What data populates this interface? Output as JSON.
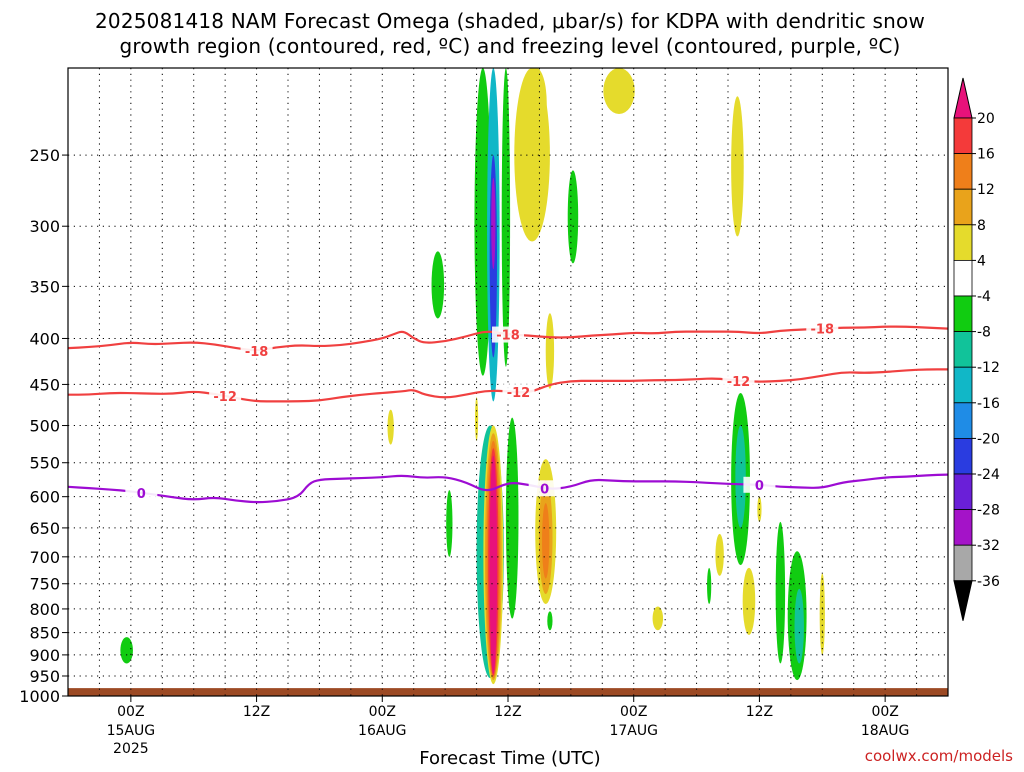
{
  "chart_data": {
    "type": "heatmap",
    "title_line1": "2025081418 NAM Forecast Omega (shaded, μbar/s) for KDPA with dendritic snow",
    "title_line2": "growth region (contoured, red, ºC) and freezing level (contoured, purple, ºC)",
    "xlabel": "Forecast Time (UTC)",
    "credit": "coolwx.com/models",
    "y_axis": {
      "scale": "pressure",
      "range": [
        1000,
        200
      ],
      "ticks": [
        "250",
        "300",
        "350",
        "400",
        "450",
        "500",
        "550",
        "600",
        "650",
        "700",
        "750",
        "800",
        "850",
        "900",
        "950",
        "1000"
      ]
    },
    "x_axis": {
      "range_hours": [
        -6,
        78
      ],
      "ticks": [
        {
          "h": 0,
          "line1": "00Z",
          "line2": "15AUG",
          "line3": "2025"
        },
        {
          "h": 12,
          "line1": "12Z",
          "line2": "",
          "line3": ""
        },
        {
          "h": 24,
          "line1": "00Z",
          "line2": "16AUG",
          "line3": ""
        },
        {
          "h": 36,
          "line1": "12Z",
          "line2": "",
          "line3": ""
        },
        {
          "h": 48,
          "line1": "00Z",
          "line2": "17AUG",
          "line3": ""
        },
        {
          "h": 60,
          "line1": "12Z",
          "line2": "",
          "line3": ""
        },
        {
          "h": 72,
          "line1": "00Z",
          "line2": "18AUG",
          "line3": ""
        }
      ]
    },
    "grid": true,
    "colorbar": {
      "labels": [
        "20",
        "16",
        "12",
        "8",
        "4",
        "-4",
        "-8",
        "-12",
        "-16",
        "-20",
        "-24",
        "-28",
        "-32",
        "-36"
      ],
      "bands": [
        {
          "from": 16,
          "to": 20,
          "color": "#f43a3a"
        },
        {
          "from": 12,
          "to": 16,
          "color": "#ef7f1a"
        },
        {
          "from": 8,
          "to": 12,
          "color": "#e9a31b"
        },
        {
          "from": 4,
          "to": 8,
          "color": "#e5db2c"
        },
        {
          "from": -4,
          "to": 4,
          "color": "#ffffff"
        },
        {
          "from": -8,
          "to": -4,
          "color": "#11cc11"
        },
        {
          "from": -12,
          "to": -8,
          "color": "#11c39a"
        },
        {
          "from": -16,
          "to": -12,
          "color": "#11b7c7"
        },
        {
          "from": -20,
          "to": -16,
          "color": "#1f8ce6"
        },
        {
          "from": -24,
          "to": -20,
          "color": "#2a3ce0"
        },
        {
          "from": -28,
          "to": -24,
          "color": "#6a1fd8"
        },
        {
          "from": -32,
          "to": -28,
          "color": "#a413c8"
        },
        {
          "from": -36,
          "to": -32,
          "color": "#a8a8a8"
        }
      ],
      "top_arrow_color": "#e8127a",
      "bottom_arrow_color": "#000000"
    },
    "ground_color": "#9c4a24",
    "contours": [
      {
        "label": "-18",
        "color": "#f04040",
        "points": [
          [
            -6,
            410
          ],
          [
            -4,
            409
          ],
          [
            -2,
            407
          ],
          [
            0,
            404
          ],
          [
            2,
            406
          ],
          [
            4,
            405
          ],
          [
            6,
            404
          ],
          [
            8,
            406
          ],
          [
            10,
            410
          ],
          [
            12,
            413
          ],
          [
            14,
            409
          ],
          [
            16,
            407
          ],
          [
            18,
            408
          ],
          [
            20,
            407
          ],
          [
            22,
            404
          ],
          [
            24,
            400
          ],
          [
            25,
            396
          ],
          [
            26,
            392
          ],
          [
            27,
            400
          ],
          [
            28,
            405
          ],
          [
            30,
            403
          ],
          [
            32,
            398
          ],
          [
            34,
            392
          ],
          [
            36,
            396
          ],
          [
            38,
            397
          ],
          [
            40,
            399
          ],
          [
            42,
            399
          ],
          [
            44,
            397
          ],
          [
            46,
            396
          ],
          [
            48,
            394
          ],
          [
            50,
            395
          ],
          [
            52,
            393
          ],
          [
            54,
            393
          ],
          [
            56,
            393
          ],
          [
            58,
            393
          ],
          [
            60,
            395
          ],
          [
            62,
            392
          ],
          [
            64,
            391
          ],
          [
            66,
            390
          ],
          [
            68,
            389
          ],
          [
            70,
            389
          ],
          [
            72,
            388
          ],
          [
            74,
            388
          ],
          [
            76,
            389
          ],
          [
            78,
            390
          ]
        ],
        "labels_at": [
          12,
          36,
          66
        ]
      },
      {
        "label": "-12",
        "color": "#f04040",
        "points": [
          [
            -6,
            462
          ],
          [
            -4,
            462
          ],
          [
            -2,
            460
          ],
          [
            0,
            460
          ],
          [
            2,
            461
          ],
          [
            4,
            461
          ],
          [
            6,
            458
          ],
          [
            8,
            461
          ],
          [
            10,
            466
          ],
          [
            12,
            470
          ],
          [
            14,
            470
          ],
          [
            16,
            470
          ],
          [
            18,
            469
          ],
          [
            20,
            465
          ],
          [
            22,
            462
          ],
          [
            24,
            460
          ],
          [
            26,
            458
          ],
          [
            27,
            456
          ],
          [
            28,
            462
          ],
          [
            30,
            466
          ],
          [
            32,
            462
          ],
          [
            34,
            457
          ],
          [
            36,
            458
          ],
          [
            38,
            460
          ],
          [
            40,
            450
          ],
          [
            42,
            446
          ],
          [
            44,
            446
          ],
          [
            46,
            446
          ],
          [
            48,
            446
          ],
          [
            50,
            445
          ],
          [
            52,
            445
          ],
          [
            54,
            444
          ],
          [
            56,
            443
          ],
          [
            58,
            446
          ],
          [
            60,
            447
          ],
          [
            62,
            446
          ],
          [
            64,
            444
          ],
          [
            66,
            440
          ],
          [
            68,
            436
          ],
          [
            70,
            437
          ],
          [
            72,
            436
          ],
          [
            74,
            434
          ],
          [
            76,
            433
          ],
          [
            78,
            433
          ]
        ],
        "labels_at": [
          9,
          37,
          58
        ]
      },
      {
        "label": "0",
        "color": "#9d0cd3",
        "points": [
          [
            -6,
            585
          ],
          [
            -4,
            587
          ],
          [
            -2,
            589
          ],
          [
            0,
            592
          ],
          [
            2,
            596
          ],
          [
            4,
            601
          ],
          [
            6,
            605
          ],
          [
            8,
            601
          ],
          [
            10,
            606
          ],
          [
            12,
            609
          ],
          [
            14,
            607
          ],
          [
            16,
            601
          ],
          [
            17,
            580
          ],
          [
            18,
            574
          ],
          [
            20,
            573
          ],
          [
            22,
            572
          ],
          [
            24,
            571
          ],
          [
            26,
            568
          ],
          [
            28,
            572
          ],
          [
            30,
            570
          ],
          [
            32,
            578
          ],
          [
            34,
            594
          ],
          [
            36,
            578
          ],
          [
            38,
            582
          ],
          [
            40,
            589
          ],
          [
            42,
            585
          ],
          [
            44,
            574
          ],
          [
            46,
            576
          ],
          [
            48,
            577
          ],
          [
            50,
            577
          ],
          [
            52,
            577
          ],
          [
            54,
            578
          ],
          [
            56,
            580
          ],
          [
            58,
            581
          ],
          [
            60,
            582
          ],
          [
            62,
            585
          ],
          [
            64,
            586
          ],
          [
            66,
            587
          ],
          [
            68,
            578
          ],
          [
            70,
            575
          ],
          [
            72,
            571
          ],
          [
            74,
            570
          ],
          [
            76,
            568
          ],
          [
            78,
            567
          ]
        ],
        "labels_at": [
          1,
          39.5,
          60
        ]
      }
    ],
    "omega_cells": [
      {
        "t": 33.6,
        "p_top": 200,
        "p_bot": 440,
        "half_h": 0.8,
        "value": -8
      },
      {
        "t": 35.8,
        "p_top": 200,
        "p_bot": 430,
        "half_h": 0.4,
        "value": -6
      },
      {
        "t": 34.6,
        "p_top": 200,
        "p_bot": 470,
        "half_h": 0.6,
        "value": -16
      },
      {
        "t": 34.6,
        "p_top": 250,
        "p_bot": 420,
        "half_h": 0.35,
        "value": -22
      },
      {
        "t": 34.6,
        "p_top": 265,
        "p_bot": 335,
        "half_h": 0.2,
        "value": -30
      },
      {
        "t": 29.3,
        "p_top": 320,
        "p_bot": 380,
        "half_h": 0.6,
        "value": -6
      },
      {
        "t": 42.2,
        "p_top": 260,
        "p_bot": 330,
        "half_h": 0.5,
        "value": -6
      },
      {
        "t": 38.3,
        "p_top": 200,
        "p_bot": 312,
        "half_h": 1.7,
        "value": 5
      },
      {
        "t": 38.7,
        "p_top": 200,
        "p_bot": 240,
        "half_h": 1.0,
        "value": 5
      },
      {
        "t": 40.0,
        "p_top": 375,
        "p_bot": 455,
        "half_h": 0.4,
        "value": 5
      },
      {
        "t": 46.6,
        "p_top": 200,
        "p_bot": 225,
        "half_h": 1.5,
        "value": 5
      },
      {
        "t": 57.9,
        "p_top": 215,
        "p_bot": 308,
        "half_h": 0.6,
        "value": 5
      },
      {
        "t": 24.8,
        "p_top": 480,
        "p_bot": 525,
        "half_h": 0.3,
        "value": 5
      },
      {
        "t": 33.0,
        "p_top": 465,
        "p_bot": 520,
        "half_h": 0.15,
        "value": 5
      },
      {
        "t": 34.3,
        "p_top": 500,
        "p_bot": 955,
        "half_h": 1.3,
        "value": -10
      },
      {
        "t": 34.6,
        "p_top": 500,
        "p_bot": 970,
        "half_h": 0.95,
        "value": 6
      },
      {
        "t": 34.6,
        "p_top": 510,
        "p_bot": 960,
        "half_h": 0.8,
        "value": 10
      },
      {
        "t": 34.6,
        "p_top": 520,
        "p_bot": 955,
        "half_h": 0.65,
        "value": 14
      },
      {
        "t": 34.6,
        "p_top": 530,
        "p_bot": 950,
        "half_h": 0.5,
        "value": 18
      },
      {
        "t": 34.6,
        "p_top": 540,
        "p_bot": 945,
        "half_h": 0.36,
        "value": 24
      },
      {
        "t": 36.4,
        "p_top": 490,
        "p_bot": 820,
        "half_h": 0.6,
        "value": -6
      },
      {
        "t": 30.4,
        "p_top": 590,
        "p_bot": 700,
        "half_h": 0.3,
        "value": -6
      },
      {
        "t": 39.6,
        "p_top": 545,
        "p_bot": 790,
        "half_h": 1.0,
        "value": 6
      },
      {
        "t": 39.6,
        "p_top": 575,
        "p_bot": 770,
        "half_h": 0.65,
        "value": 10
      },
      {
        "t": 39.6,
        "p_top": 610,
        "p_bot": 740,
        "half_h": 0.35,
        "value": 14
      },
      {
        "t": 40.0,
        "p_top": 805,
        "p_bot": 845,
        "half_h": 0.25,
        "value": -6
      },
      {
        "t": -0.4,
        "p_top": 860,
        "p_bot": 920,
        "half_h": 0.6,
        "value": -6
      },
      {
        "t": 58.2,
        "p_top": 460,
        "p_bot": 715,
        "half_h": 0.9,
        "value": -7
      },
      {
        "t": 58.2,
        "p_top": 500,
        "p_bot": 650,
        "half_h": 0.5,
        "value": -10
      },
      {
        "t": 60.0,
        "p_top": 600,
        "p_bot": 640,
        "half_h": 0.2,
        "value": 5
      },
      {
        "t": 56.2,
        "p_top": 660,
        "p_bot": 735,
        "half_h": 0.4,
        "value": 5
      },
      {
        "t": 55.2,
        "p_top": 720,
        "p_bot": 790,
        "half_h": 0.2,
        "value": -6
      },
      {
        "t": 59.0,
        "p_top": 720,
        "p_bot": 855,
        "half_h": 0.6,
        "value": 5
      },
      {
        "t": 50.3,
        "p_top": 795,
        "p_bot": 845,
        "half_h": 0.5,
        "value": 5
      },
      {
        "t": 62.0,
        "p_top": 640,
        "p_bot": 920,
        "half_h": 0.45,
        "value": -6
      },
      {
        "t": 63.6,
        "p_top": 690,
        "p_bot": 960,
        "half_h": 0.9,
        "value": -6
      },
      {
        "t": 63.8,
        "p_top": 760,
        "p_bot": 920,
        "half_h": 0.45,
        "value": -11
      },
      {
        "t": 66.0,
        "p_top": 730,
        "p_bot": 900,
        "half_h": 0.25,
        "value": 5
      }
    ]
  }
}
